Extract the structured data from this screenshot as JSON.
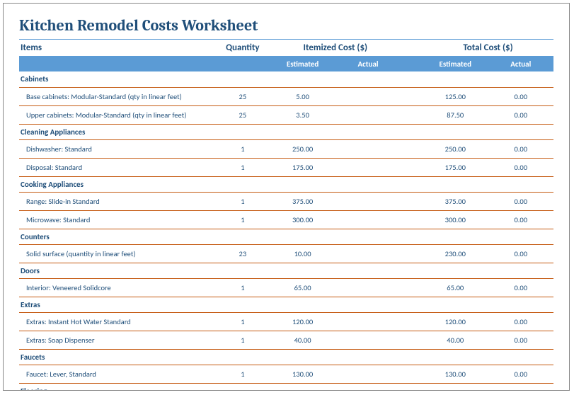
{
  "title": "Kitchen Remodel Costs Worksheet",
  "headers": {
    "items": "Items",
    "quantity": "Quantity",
    "itemized": "Itemized Cost ($)",
    "total": "Total Cost ($)",
    "estimated": "Estimated",
    "actual": "Actual"
  },
  "sections": [
    {
      "name": "Cabinets",
      "rows": [
        {
          "label": "Base cabinets: Modular-Standard (qty in linear feet)",
          "qty": "25",
          "est": "5.00",
          "act": "",
          "test": "125.00",
          "tact": "0.00"
        },
        {
          "label": "Upper cabinets: Modular-Standard (qty in linear feet)",
          "qty": "25",
          "est": "3.50",
          "act": "",
          "test": "87.50",
          "tact": "0.00"
        }
      ]
    },
    {
      "name": "Cleaning Appliances",
      "rows": [
        {
          "label": "Dishwasher: Standard",
          "qty": "1",
          "est": "250.00",
          "act": "",
          "test": "250.00",
          "tact": "0.00"
        },
        {
          "label": "Disposal: Standard",
          "qty": "1",
          "est": "175.00",
          "act": "",
          "test": "175.00",
          "tact": "0.00"
        }
      ]
    },
    {
      "name": "Cooking Appliances",
      "rows": [
        {
          "label": "Range: Slide-in Standard",
          "qty": "1",
          "est": "375.00",
          "act": "",
          "test": "375.00",
          "tact": "0.00"
        },
        {
          "label": "Microwave: Standard",
          "qty": "1",
          "est": "300.00",
          "act": "",
          "test": "300.00",
          "tact": "0.00"
        }
      ]
    },
    {
      "name": "Counters",
      "rows": [
        {
          "label": "Solid surface (quantity in linear feet)",
          "qty": "23",
          "est": "10.00",
          "act": "",
          "test": "230.00",
          "tact": "0.00"
        }
      ]
    },
    {
      "name": "Doors",
      "rows": [
        {
          "label": "Interior: Veneered Solidcore",
          "qty": "1",
          "est": "65.00",
          "act": "",
          "test": "65.00",
          "tact": "0.00"
        }
      ]
    },
    {
      "name": "Extras",
      "rows": [
        {
          "label": "Extras: Instant Hot Water Standard",
          "qty": "1",
          "est": "120.00",
          "act": "",
          "test": "120.00",
          "tact": "0.00"
        },
        {
          "label": "Extras: Soap Dispenser",
          "qty": "1",
          "est": "40.00",
          "act": "",
          "test": "40.00",
          "tact": "0.00"
        }
      ]
    },
    {
      "name": "Faucets",
      "rows": [
        {
          "label": "Faucet: Lever, Standard",
          "qty": "1",
          "est": "130.00",
          "act": "",
          "test": "130.00",
          "tact": "0.00"
        }
      ]
    },
    {
      "name": "Flooring",
      "rows": []
    }
  ],
  "colors": {
    "accent": "#1f4e79",
    "header_bg": "#5b9bd5",
    "rule": "#c55a11",
    "background": "#ffffff"
  }
}
